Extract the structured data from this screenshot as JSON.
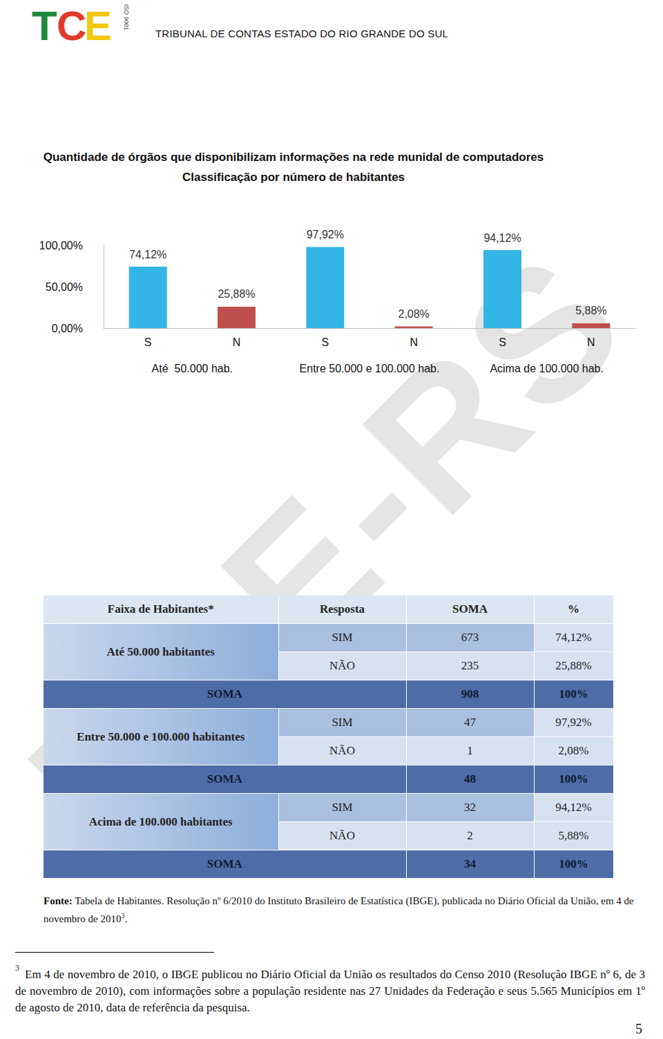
{
  "header": {
    "logo": "TCE",
    "logo_cert": "ISO 9001",
    "organization": "TRIBUNAL DE CONTAS ESTADO DO RIO GRANDE DO SUL"
  },
  "watermark": "TCE-RS",
  "chart_data": {
    "type": "bar",
    "title": "Quantidade de órgãos que disponibilizam informações na rede munidal de computadores",
    "subtitle": "Classificação por número de habitantes",
    "categories": [
      "S",
      "N",
      "S",
      "N",
      "S",
      "N"
    ],
    "x_groups": [
      "Até  50.000 hab.",
      "Entre 50.000 e 100.000 hab.",
      "Acima de 100.000 hab."
    ],
    "values": [
      74.12,
      25.88,
      97.92,
      2.08,
      94.12,
      5.88
    ],
    "value_labels": [
      "74,12%",
      "25,88%",
      "97,92%",
      "2,08%",
      "94,12%",
      "5,88%"
    ],
    "colors": [
      "#33b5e5",
      "#c0504d",
      "#33b5e5",
      "#c0504d",
      "#33b5e5",
      "#c0504d"
    ],
    "ylim": [
      0,
      100
    ],
    "yticks": [
      {
        "value": 0,
        "label": "0,00%"
      },
      {
        "value": 50,
        "label": "50,00%"
      },
      {
        "value": 100,
        "label": "100,00%"
      }
    ],
    "grid": false,
    "data_labels": true
  },
  "table": {
    "header": [
      "Faixa de Habitantes*",
      "Resposta",
      "SOMA",
      "%"
    ],
    "groups": [
      {
        "faixa": "Até 50.000 habitantes",
        "rows": [
          [
            "SIM",
            "673",
            "74,12%"
          ],
          [
            "NÃO",
            "235",
            "25,88%"
          ]
        ],
        "total": [
          "SOMA",
          "908",
          "100%"
        ]
      },
      {
        "faixa": "Entre 50.000 e 100.000 habitantes",
        "rows": [
          [
            "SIM",
            "47",
            "97,92%"
          ],
          [
            "NÃO",
            "1",
            "2,08%"
          ]
        ],
        "total": [
          "SOMA",
          "48",
          "100%"
        ]
      },
      {
        "faixa": "Acima de 100.000 habitantes",
        "rows": [
          [
            "SIM",
            "32",
            "94,12%"
          ],
          [
            "NÃO",
            "2",
            "5,88%"
          ]
        ],
        "total": [
          "SOMA",
          "34",
          "100%"
        ]
      }
    ]
  },
  "source": {
    "label": "Fonte:",
    "text": " Tabela de Habitantes. Resolução nº 6/2010 do Instituto Brasileiro de Estatística (IBGE), publicada no Diário Oficial da União, em 4 de novembro de 2010",
    "note_ref": "3",
    "end": "."
  },
  "footnote": {
    "number": "3",
    "text": "Em 4 de novembro de 2010, o IBGE publicou no Diário Oficial da União os resultados do Censo 2010 (Resolução IBGE nº 6, de 3 de novembro de 2010), com informações sobre a população residente nas 27 Unidades da Federação e seus 5.565 Municípios em 1º de agosto de 2010, data de referência da pesquisa."
  },
  "page_number": "5"
}
